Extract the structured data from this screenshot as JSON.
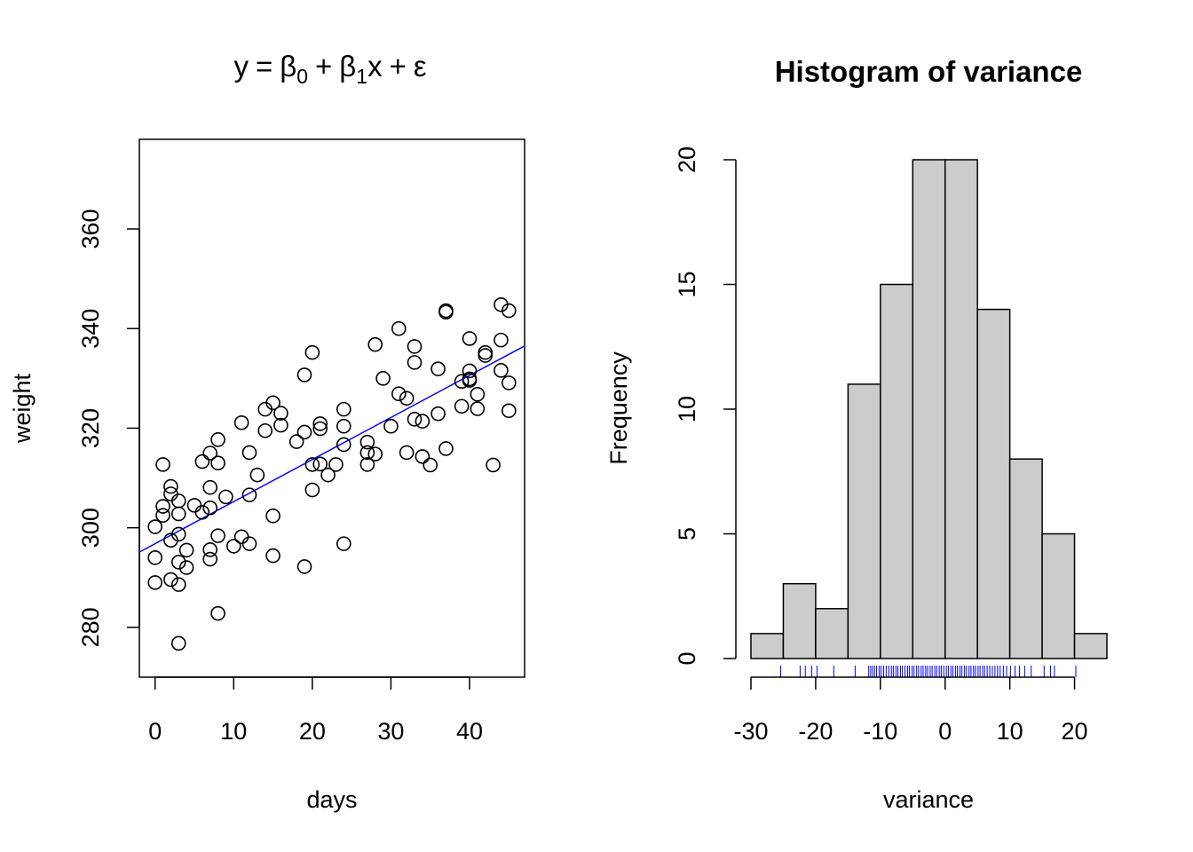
{
  "chart_data": [
    {
      "type": "scatter",
      "title_formula": {
        "y": "y",
        "eq": "=",
        "beta": "β",
        "sub0": "0",
        "plus1": "+",
        "sub1": "1",
        "x": "x",
        "plus2": "+",
        "eps": "ε"
      },
      "xlabel": "days",
      "ylabel": "weight",
      "xlim": [
        -2,
        47
      ],
      "ylim": [
        270,
        378
      ],
      "x_ticks": [
        0,
        10,
        20,
        30,
        40
      ],
      "y_ticks": [
        280,
        300,
        320,
        340,
        360
      ],
      "x_tick_labels": [
        "0",
        "10",
        "20",
        "30",
        "40"
      ],
      "y_tick_labels": [
        "280",
        "300",
        "320",
        "340",
        "360"
      ],
      "fit_line": {
        "intercept": 296.8,
        "slope": 0.845,
        "color": "#0000ff"
      },
      "point_color": "#000000",
      "points": [
        [
          0,
          300.2
        ],
        [
          0,
          294
        ],
        [
          0,
          289
        ],
        [
          1,
          312.7
        ],
        [
          1,
          304.3
        ],
        [
          1,
          302.5
        ],
        [
          2,
          308.3
        ],
        [
          2,
          306.8
        ],
        [
          2,
          297.5
        ],
        [
          2,
          289.6
        ],
        [
          3,
          305.4
        ],
        [
          3,
          302.8
        ],
        [
          3,
          298.7
        ],
        [
          3,
          293.1
        ],
        [
          3,
          288.6
        ],
        [
          3,
          276.8
        ],
        [
          4,
          295.5
        ],
        [
          4,
          292
        ],
        [
          5,
          304.5
        ],
        [
          6,
          313.3
        ],
        [
          6,
          303.1
        ],
        [
          7,
          315
        ],
        [
          7,
          308.1
        ],
        [
          7,
          304
        ],
        [
          7,
          295.6
        ],
        [
          7,
          293.7
        ],
        [
          8,
          317.7
        ],
        [
          8,
          313
        ],
        [
          8,
          298.4
        ],
        [
          8,
          282.8
        ],
        [
          9,
          306.2
        ],
        [
          10,
          296.3
        ],
        [
          11,
          321.1
        ],
        [
          11,
          298.2
        ],
        [
          12,
          315.1
        ],
        [
          12,
          306.6
        ],
        [
          12,
          296.8
        ],
        [
          13,
          310.6
        ],
        [
          14,
          323.8
        ],
        [
          14,
          319.5
        ],
        [
          15,
          325.1
        ],
        [
          15,
          302.4
        ],
        [
          15,
          294.4
        ],
        [
          16,
          323
        ],
        [
          16,
          320.6
        ],
        [
          18,
          317.3
        ],
        [
          19,
          330.7
        ],
        [
          19,
          319.2
        ],
        [
          19,
          292.2
        ],
        [
          20,
          335.2
        ],
        [
          20,
          312.7
        ],
        [
          20,
          307.6
        ],
        [
          21,
          320.9
        ],
        [
          21,
          319.9
        ],
        [
          21,
          312.8
        ],
        [
          22,
          310.6
        ],
        [
          23,
          312.7
        ],
        [
          24,
          323.8
        ],
        [
          24,
          320.4
        ],
        [
          24,
          316.7
        ],
        [
          24,
          296.8
        ],
        [
          27,
          317.2
        ],
        [
          27,
          315.1
        ],
        [
          27,
          312.7
        ],
        [
          28,
          336.8
        ],
        [
          28,
          314.8
        ],
        [
          29,
          330
        ],
        [
          30,
          320.4
        ],
        [
          31,
          340
        ],
        [
          31,
          326.9
        ],
        [
          32,
          326
        ],
        [
          32,
          315.1
        ],
        [
          33,
          336.4
        ],
        [
          33,
          333.2
        ],
        [
          33,
          321.8
        ],
        [
          34,
          321.4
        ],
        [
          34,
          314.3
        ],
        [
          35,
          312.6
        ],
        [
          36,
          331.9
        ],
        [
          36,
          322.9
        ],
        [
          37,
          343.6
        ],
        [
          37,
          343.3
        ],
        [
          37,
          315.9
        ],
        [
          39,
          324.4
        ],
        [
          39,
          329.4
        ],
        [
          40,
          338
        ],
        [
          40,
          331.5
        ],
        [
          40,
          329.9
        ],
        [
          40,
          329.6
        ],
        [
          41,
          326.8
        ],
        [
          41,
          323.9
        ],
        [
          42,
          335.2
        ],
        [
          42,
          334.6
        ],
        [
          43,
          312.6
        ],
        [
          44,
          344.8
        ],
        [
          44,
          337.7
        ],
        [
          44,
          331.6
        ],
        [
          45,
          343.6
        ],
        [
          45,
          329.1
        ],
        [
          45,
          323.5
        ]
      ]
    },
    {
      "type": "bar",
      "title": "Histogram of variance",
      "xlabel": "variance",
      "ylabel": "Frequency",
      "xlim": [
        -30,
        25
      ],
      "ylim": [
        0,
        20
      ],
      "x_ticks": [
        -30,
        -20,
        -10,
        0,
        10,
        20
      ],
      "y_ticks": [
        0,
        5,
        10,
        15,
        20
      ],
      "x_tick_labels": [
        "-30",
        "-20",
        "-10",
        "0",
        "10",
        "20"
      ],
      "y_tick_labels": [
        "0",
        "5",
        "10",
        "15",
        "20"
      ],
      "bin_edges": [
        -30,
        -25,
        -20,
        -15,
        -10,
        -5,
        0,
        5,
        10,
        15,
        20,
        25
      ],
      "values": [
        1,
        3,
        2,
        11,
        15,
        20,
        20,
        14,
        8,
        5,
        1
      ],
      "bar_color": "#cccccc",
      "rug_color": "#0000ff",
      "rug": [
        -25.4,
        -22.4,
        -21.6,
        -20.6,
        -19.8,
        -17.2,
        -13.9,
        -11.8,
        -11.5,
        -11.2,
        -10.9,
        -10.6,
        -10.2,
        -9.9,
        -9.5,
        -9.1,
        -8.7,
        -8.3,
        -8.0,
        -7.6,
        -7.3,
        -6.9,
        -6.6,
        -6.2,
        -5.8,
        -5.5,
        -5.1,
        -4.8,
        -4.4,
        -4.1,
        -3.7,
        -3.4,
        -3.0,
        -2.7,
        -2.3,
        -2.0,
        -1.6,
        -1.3,
        -0.9,
        -0.6,
        -0.2,
        0.2,
        0.5,
        0.9,
        1.2,
        1.6,
        1.9,
        2.3,
        2.6,
        3.0,
        3.3,
        3.7,
        4.0,
        4.4,
        4.7,
        5.1,
        5.4,
        5.8,
        6.1,
        6.5,
        6.9,
        7.3,
        7.7,
        8.1,
        8.5,
        9.0,
        9.5,
        10.1,
        10.8,
        11.5,
        12.3,
        13.3,
        15.3,
        16.3,
        16.9,
        20.2
      ]
    }
  ]
}
